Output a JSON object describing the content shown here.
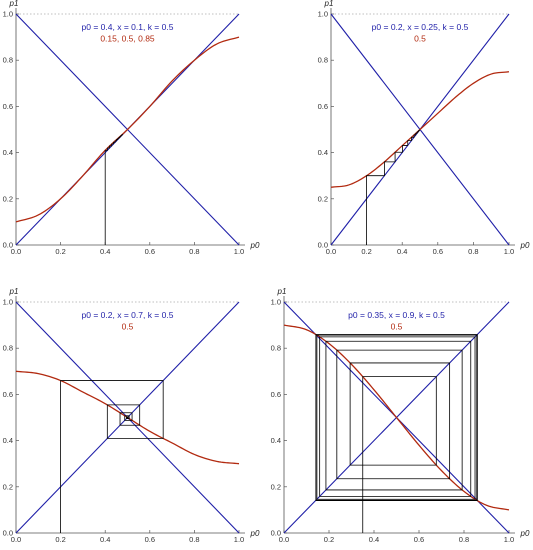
{
  "colors": {
    "diagonal": "#1f1fa8",
    "curve": "#b22a10",
    "cobweb": "#000000",
    "axis": "#555555",
    "gridline": "#aaaaaa"
  },
  "chart_data": [
    {
      "type": "line",
      "title": "",
      "param_text": "p0 = 0.4, x = 0.1, k = 0.5",
      "note_text": "0.15, 0.5, 0.85",
      "xlabel": "p0",
      "ylabel": "p1",
      "xlim": [
        0,
        1
      ],
      "ylim": [
        0,
        1
      ],
      "x_ticks": [
        "0.0",
        "0.2",
        "0.4",
        "0.6",
        "0.8",
        "1.0"
      ],
      "y_ticks": [
        "0.0",
        "0.2",
        "0.4",
        "0.6",
        "0.8",
        "1.0"
      ],
      "curve": {
        "x": [
          0.0,
          0.1,
          0.2,
          0.3,
          0.4,
          0.5,
          0.6,
          0.7,
          0.8,
          0.9,
          1.0
        ],
        "y": [
          0.1,
          0.13,
          0.2,
          0.3,
          0.41,
          0.5,
          0.6,
          0.71,
          0.8,
          0.87,
          0.9
        ]
      },
      "cobweb_start": 0.4
    },
    {
      "type": "line",
      "title": "",
      "param_text": "p0 = 0.2, x = 0.25, k = 0.5",
      "note_text": "0.5",
      "xlabel": "p0",
      "ylabel": "p1",
      "xlim": [
        0,
        1
      ],
      "ylim": [
        0,
        1
      ],
      "x_ticks": [
        "0.0",
        "0.2",
        "0.4",
        "0.6",
        "0.8",
        "1.0"
      ],
      "y_ticks": [
        "0.0",
        "0.2",
        "0.4",
        "0.6",
        "0.8",
        "1.0"
      ],
      "curve": {
        "x": [
          0.0,
          0.1,
          0.2,
          0.3,
          0.4,
          0.5,
          0.6,
          0.7,
          0.8,
          0.9,
          1.0
        ],
        "y": [
          0.25,
          0.26,
          0.3,
          0.36,
          0.43,
          0.5,
          0.57,
          0.64,
          0.7,
          0.74,
          0.75
        ]
      },
      "cobweb_start": 0.2
    },
    {
      "type": "line",
      "title": "",
      "param_text": "p0 = 0.2, x = 0.7, k = 0.5",
      "note_text": "0.5",
      "xlabel": "p0",
      "ylabel": "p1",
      "xlim": [
        0,
        1
      ],
      "ylim": [
        0,
        1
      ],
      "x_ticks": [
        "0.0",
        "0.2",
        "0.4",
        "0.6",
        "0.8",
        "1.0"
      ],
      "y_ticks": [
        "0.0",
        "0.2",
        "0.4",
        "0.6",
        "0.8",
        "1.0"
      ],
      "curve": {
        "x": [
          0.0,
          0.1,
          0.2,
          0.3,
          0.4,
          0.5,
          0.6,
          0.7,
          0.8,
          0.9,
          1.0
        ],
        "y": [
          0.7,
          0.69,
          0.66,
          0.61,
          0.56,
          0.5,
          0.44,
          0.39,
          0.34,
          0.31,
          0.3
        ]
      },
      "cobweb_start": 0.2
    },
    {
      "type": "line",
      "title": "",
      "param_text": "p0 = 0.35, x = 0.9, k = 0.5",
      "note_text": "0.5",
      "xlabel": "p0",
      "ylabel": "p1",
      "xlim": [
        0,
        1
      ],
      "ylim": [
        0,
        1
      ],
      "x_ticks": [
        "0.0",
        "0.2",
        "0.4",
        "0.6",
        "0.8",
        "1.0"
      ],
      "y_ticks": [
        "0.0",
        "0.2",
        "0.4",
        "0.6",
        "0.8",
        "1.0"
      ],
      "curve": {
        "x": [
          0.0,
          0.1,
          0.2,
          0.3,
          0.4,
          0.5,
          0.6,
          0.7,
          0.8,
          0.9,
          1.0
        ],
        "y": [
          0.9,
          0.88,
          0.82,
          0.73,
          0.62,
          0.5,
          0.38,
          0.27,
          0.18,
          0.12,
          0.1
        ]
      },
      "cobweb_start": 0.35
    }
  ]
}
